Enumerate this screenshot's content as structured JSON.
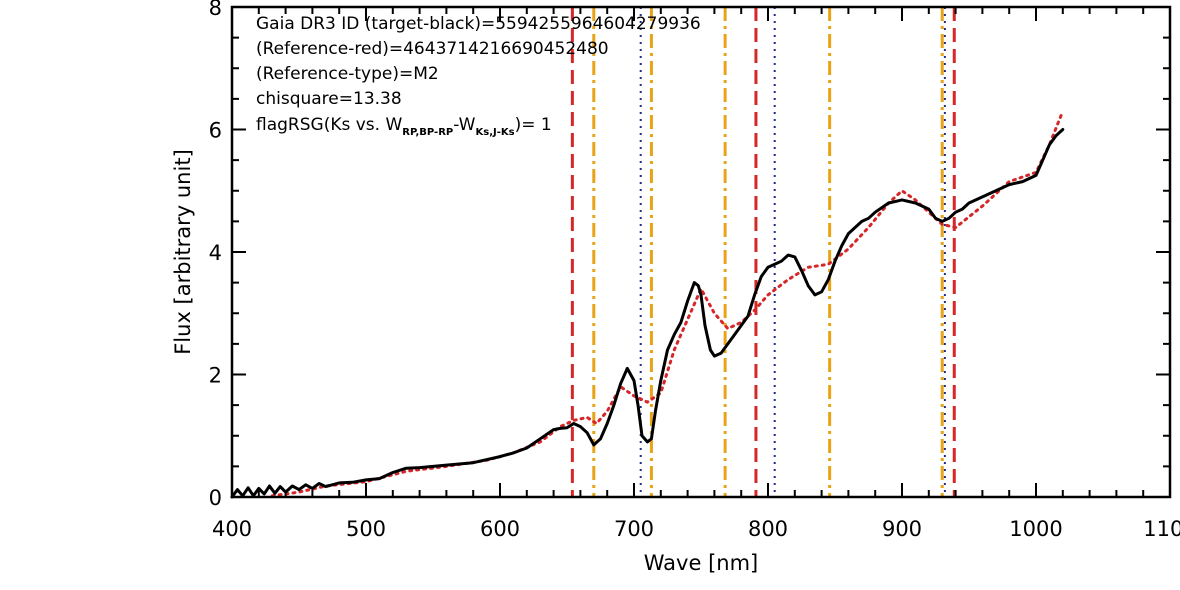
{
  "chart_data": {
    "type": "line",
    "xlabel": "Wave [nm]",
    "ylabel": "Flux [arbitrary unit]",
    "xlim": [
      400,
      1100
    ],
    "ylim": [
      0,
      8
    ],
    "x_ticks": [
      400,
      500,
      600,
      700,
      800,
      900,
      1000,
      1100
    ],
    "x_tick_labels": [
      "400",
      "500",
      "600",
      "700",
      "800",
      "900",
      "1000",
      "1100"
    ],
    "y_ticks": [
      0,
      2,
      4,
      6,
      8
    ],
    "y_tick_labels": [
      "0",
      "2",
      "4",
      "6",
      "8"
    ],
    "annotations": [
      "Gaia DR3 ID (target-black)=5594255964604279936",
      "(Reference-red)=4643714216690452480",
      "(Reference-type)=M2",
      "chisquare=13.38"
    ],
    "flag_annotation": {
      "prefix": "flagRSG(Ks vs. W",
      "sub1": "RP,BP-RP",
      "mid": "-W",
      "sub2": "Ks,J-Ks",
      "suffix": ")= 1"
    },
    "series": [
      {
        "color": "#000000",
        "style": "solid",
        "x": [
          400,
          404,
          408,
          412,
          416,
          420,
          424,
          428,
          432,
          436,
          440,
          445,
          450,
          455,
          460,
          465,
          470,
          480,
          490,
          500,
          510,
          520,
          530,
          540,
          560,
          580,
          600,
          610,
          620,
          630,
          640,
          645,
          650,
          655,
          660,
          665,
          670,
          675,
          680,
          685,
          690,
          695,
          700,
          703,
          706,
          710,
          713,
          716,
          720,
          725,
          730,
          735,
          740,
          745,
          748,
          750,
          753,
          757,
          760,
          765,
          770,
          775,
          780,
          785,
          790,
          795,
          800,
          805,
          810,
          815,
          820,
          825,
          830,
          835,
          840,
          845,
          850,
          855,
          860,
          865,
          870,
          875,
          880,
          890,
          900,
          910,
          920,
          925,
          930,
          935,
          940,
          945,
          950,
          960,
          970,
          980,
          990,
          1000,
          1005,
          1010,
          1015,
          1020
        ],
        "y": [
          0.0,
          0.12,
          0.02,
          0.15,
          0.02,
          0.14,
          0.05,
          0.18,
          0.06,
          0.17,
          0.08,
          0.18,
          0.12,
          0.2,
          0.14,
          0.22,
          0.17,
          0.23,
          0.24,
          0.28,
          0.3,
          0.4,
          0.47,
          0.48,
          0.52,
          0.56,
          0.66,
          0.72,
          0.8,
          0.95,
          1.1,
          1.12,
          1.13,
          1.2,
          1.15,
          1.05,
          0.85,
          0.95,
          1.2,
          1.5,
          1.85,
          2.1,
          1.9,
          1.5,
          1.0,
          0.9,
          0.95,
          1.4,
          1.9,
          2.4,
          2.65,
          2.85,
          3.2,
          3.5,
          3.45,
          3.3,
          2.8,
          2.4,
          2.3,
          2.35,
          2.5,
          2.65,
          2.8,
          2.95,
          3.3,
          3.6,
          3.75,
          3.8,
          3.85,
          3.95,
          3.92,
          3.7,
          3.45,
          3.3,
          3.35,
          3.55,
          3.85,
          4.1,
          4.3,
          4.4,
          4.5,
          4.55,
          4.65,
          4.8,
          4.85,
          4.8,
          4.7,
          4.55,
          4.5,
          4.55,
          4.65,
          4.7,
          4.8,
          4.9,
          5.0,
          5.1,
          5.15,
          5.25,
          5.5,
          5.75,
          5.9,
          6.0
        ]
      },
      {
        "color": "#d62728",
        "style": "dotted",
        "x": [
          430,
          450,
          470,
          500,
          530,
          560,
          590,
          610,
          630,
          645,
          655,
          665,
          672,
          680,
          690,
          700,
          710,
          720,
          730,
          740,
          750,
          760,
          770,
          780,
          790,
          800,
          815,
          830,
          845,
          860,
          875,
          890,
          900,
          910,
          920,
          930,
          940,
          960,
          980,
          1000,
          1010,
          1020
        ],
        "y": [
          0.02,
          0.08,
          0.18,
          0.25,
          0.42,
          0.5,
          0.6,
          0.72,
          0.9,
          1.15,
          1.25,
          1.3,
          1.2,
          1.4,
          1.8,
          1.65,
          1.55,
          1.7,
          2.4,
          2.9,
          3.4,
          3.0,
          2.75,
          2.85,
          3.05,
          3.3,
          3.55,
          3.75,
          3.8,
          4.05,
          4.4,
          4.8,
          5.0,
          4.85,
          4.65,
          4.45,
          4.4,
          4.75,
          5.15,
          5.3,
          5.75,
          6.3
        ]
      }
    ],
    "vlines": [
      {
        "x": 654,
        "color": "#d62728",
        "style": "dashed"
      },
      {
        "x": 791,
        "color": "#d62728",
        "style": "dashed"
      },
      {
        "x": 939,
        "color": "#d62728",
        "style": "dashed"
      },
      {
        "x": 670,
        "color": "#e8a317",
        "style": "dashdot"
      },
      {
        "x": 713,
        "color": "#e8a317",
        "style": "dashdot"
      },
      {
        "x": 768,
        "color": "#e8a317",
        "style": "dashdot"
      },
      {
        "x": 846,
        "color": "#e8a317",
        "style": "dashdot"
      },
      {
        "x": 930,
        "color": "#e8a317",
        "style": "dashdot"
      },
      {
        "x": 705,
        "color": "#1f2a8a",
        "style": "dotted"
      },
      {
        "x": 805,
        "color": "#1f2a8a",
        "style": "dotted"
      },
      {
        "x": 932,
        "color": "#1f2a8a",
        "style": "dotted"
      }
    ]
  }
}
